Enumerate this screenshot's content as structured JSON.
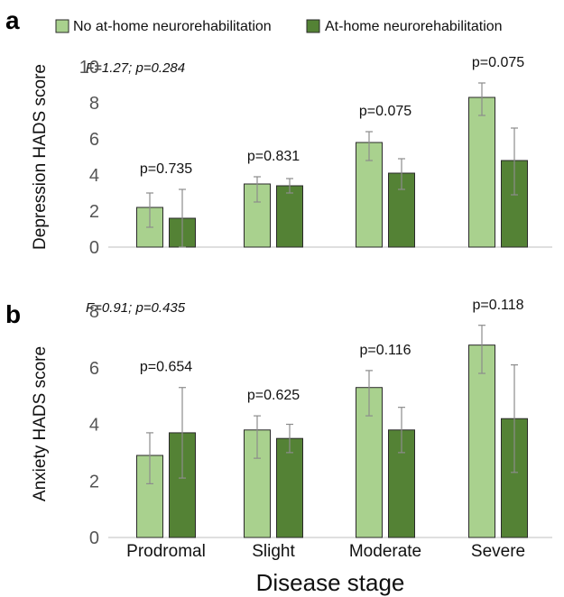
{
  "legend": [
    {
      "label": "No at-home neurorehabilitation",
      "color": "#a9d18e"
    },
    {
      "label": "At-home neurorehabilitation",
      "color": "#548235"
    }
  ],
  "xlabel": "Disease stage",
  "chart_data": [
    {
      "type": "bar",
      "panel": "a",
      "stat_note": "F=1.27; p=0.284",
      "ylabel": "Depression HADS score",
      "ylim": [
        0,
        10
      ],
      "yticks": [
        "0",
        "2",
        "4",
        "6",
        "8",
        "10"
      ],
      "categories": [
        "Prodromal",
        "Slight",
        "Moderate",
        "Severe"
      ],
      "series": [
        {
          "name": "No at-home neurorehabilitation",
          "values": [
            2.2,
            3.5,
            5.8,
            8.3
          ],
          "err_low": [
            1.1,
            2.5,
            4.8,
            7.3
          ],
          "err_high": [
            3.0,
            3.9,
            6.4,
            9.1
          ]
        },
        {
          "name": "At-home neurorehabilitation",
          "values": [
            1.6,
            3.4,
            4.1,
            4.8
          ],
          "err_low": [
            0.0,
            3.0,
            3.2,
            2.9
          ],
          "err_high": [
            3.2,
            3.8,
            4.9,
            6.6
          ]
        }
      ],
      "p_values": [
        "p=0.735",
        "p=0.831",
        "p=0.075",
        "p=0.075"
      ]
    },
    {
      "type": "bar",
      "panel": "b",
      "stat_note": "F=0.91; p=0.435",
      "ylabel": "Anxiety HADS score",
      "ylim": [
        0,
        8
      ],
      "yticks": [
        "0",
        "2",
        "4",
        "6",
        "8"
      ],
      "categories": [
        "Prodromal",
        "Slight",
        "Moderate",
        "Severe"
      ],
      "series": [
        {
          "name": "No at-home neurorehabilitation",
          "values": [
            2.9,
            3.8,
            5.3,
            6.8
          ],
          "err_low": [
            1.9,
            2.8,
            4.3,
            5.8
          ],
          "err_high": [
            3.7,
            4.3,
            5.9,
            7.5
          ]
        },
        {
          "name": "At-home neurorehabilitation",
          "values": [
            3.7,
            3.5,
            3.8,
            4.2
          ],
          "err_low": [
            2.1,
            3.0,
            3.0,
            2.3
          ],
          "err_high": [
            5.3,
            4.0,
            4.6,
            6.1
          ]
        }
      ],
      "p_values": [
        "p=0.654",
        "p=0.625",
        "p=0.116",
        "p=0.118"
      ]
    }
  ]
}
